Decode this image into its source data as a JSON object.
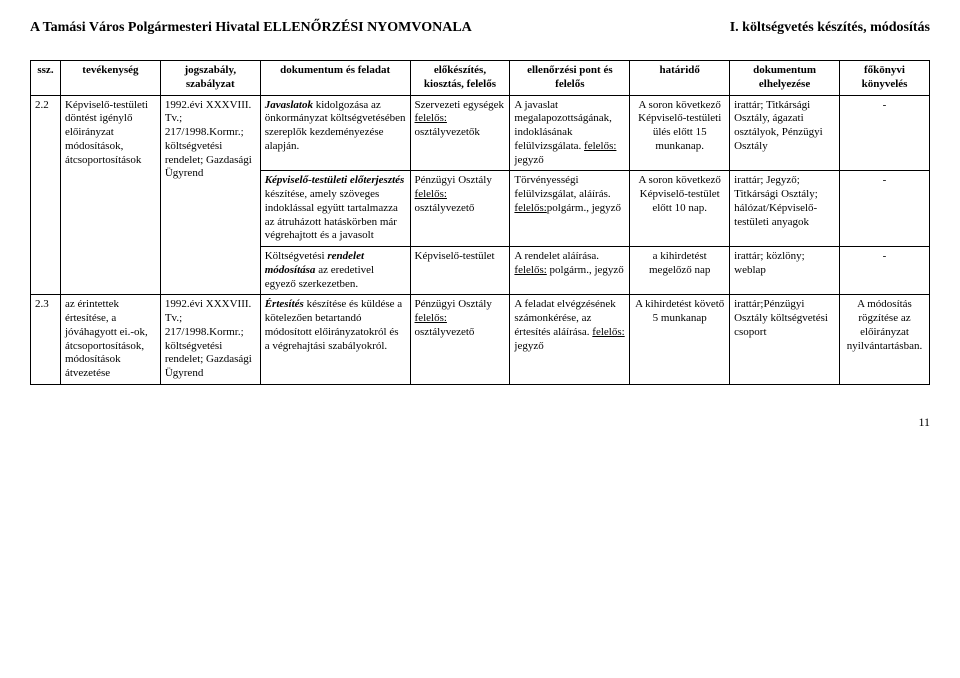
{
  "header": {
    "left": "A Tamási Város Polgármesteri Hivatal ELLENŐRZÉSI NYOMVONALA",
    "right": "I. költségvetés készítés, módosítás"
  },
  "columns": [
    {
      "label": "ssz.",
      "width": "3%"
    },
    {
      "label": "tevékenység",
      "width": "10%"
    },
    {
      "label": "jogszabály, szabályzat",
      "width": "10%"
    },
    {
      "label": "dokumentum és feladat",
      "width": "15%"
    },
    {
      "label": "előkészítés, kiosztás, felelős",
      "width": "10%"
    },
    {
      "label": "ellenőrzési pont és felelős",
      "width": "12%"
    },
    {
      "label": "határidő",
      "width": "10%"
    },
    {
      "label": "dokumentum elhelyezése",
      "width": "11%"
    },
    {
      "label": "főkönyvi könyvelés",
      "width": "9%"
    }
  ],
  "rows": [
    {
      "ssz": "2.2",
      "tevekenyseg": "Képviselő-testületi döntést igénylő előirányzat módosítások, átcsoportosítások",
      "jogszabaly": "1992.évi XXXVIII. Tv.; 217/1998.Kormr.; költségvetési rendelet; Gazdasági Ügyrend",
      "subrows": [
        {
          "dokfeladat_html": "<i><b>Javaslatok</b></i> kidolgozása az önkormányzat költségvetésében szereplők kezdeményezése alapján.",
          "elokeszites_html": "Szervezeti egységek <u>felelős:</u> osztályvezetők",
          "ellenorzes_html": "A javaslat megalapozottságának, indoklásának felülvizsgálata. <u>felelős:</u> jegyző",
          "hatarido": "A soron következő Képviselő-testületi ülés előtt 15 munkanap.",
          "elhelyezes": "irattár; Titkársági Osztály, ágazati osztályok, Pénzügyi Osztály",
          "fokonyvi": "-"
        },
        {
          "dokfeladat_html": "<i><b>Képviselő-testületi előterjesztés</b></i> készítése, amely szöveges indoklással együtt tartalmazza az átruházott hatáskörben már végrehajtott és a javasolt",
          "elokeszites_html": "Pénzügyi Osztály <u>felelős:</u> osztályvezető",
          "ellenorzes_html": "Törvényességi felülvizsgálat, aláírás. <u>felelős:</u>polgárm., jegyző",
          "hatarido": "A soron következő Képviselő-testület előtt 10 nap.",
          "elhelyezes": "irattár; Jegyző; Titkársági Osztály; hálózat/Képviselő-testületi anyagok",
          "fokonyvi": "-"
        },
        {
          "dokfeladat_html": "Költségvetési <i><b>rendelet módosítása</b></i> az eredetivel egyező szerkezetben.",
          "elokeszites_html": "Képviselő-testület",
          "ellenorzes_html": "A rendelet aláírása. <u>felelős:</u> polgárm., jegyző",
          "hatarido": "a kihirdetést megelőző nap",
          "elhelyezes": "irattár; közlöny; weblap",
          "fokonyvi": "-"
        }
      ]
    },
    {
      "ssz": "2.3",
      "tevekenyseg": "az érintettek értesítése, a jóváhagyott ei.-ok, átcsoportosítások, módosítások átvezetése",
      "jogszabaly": "1992.évi XXXVIII. Tv.; 217/1998.Kormr.; költségvetési rendelet; Gazdasági Ügyrend",
      "subrows": [
        {
          "dokfeladat_html": "<i><b>Értesítés</b></i> készítése és küldése a kötelezően betartandó módosított előirányzatokról és a végrehajtási szabályokról.",
          "elokeszites_html": "Pénzügyi Osztály <u>felelős:</u> osztályvezető",
          "ellenorzes_html": "A feladat elvégzésének számonkérése, az értesítés aláírása. <u>felelős:</u> jegyző",
          "hatarido": "A kihirdetést követő 5 munkanap",
          "elhelyezes": "irattár;Pénzügyi Osztály költségvetési csoport",
          "fokonyvi": "A módosítás rögzítése az előirányzat nyilvántartásban."
        }
      ]
    }
  ],
  "page_number": "11"
}
